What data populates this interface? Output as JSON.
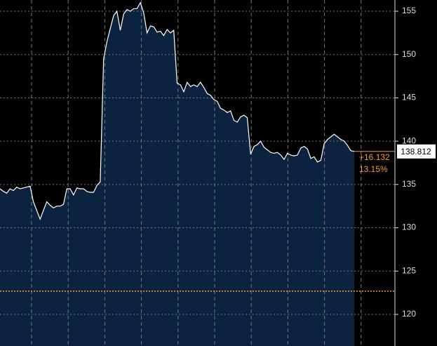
{
  "chart_data": {
    "type": "area",
    "values": [
      134.5,
      134.2,
      134.0,
      134.5,
      134.3,
      134.7,
      134.5,
      134.6,
      134.7,
      134.8,
      133.0,
      132.0,
      131.0,
      132.0,
      133.0,
      132.6,
      132.3,
      132.5,
      132.5,
      132.7,
      134.5,
      134.5,
      133.8,
      134.6,
      134.5,
      134.5,
      134.2,
      134.1,
      134.1,
      134.9,
      135.3,
      149.5,
      151.5,
      153.0,
      154.5,
      155.0,
      152.8,
      154.7,
      155.2,
      155.0,
      155.3,
      155.3,
      156.0,
      154.8,
      152.5,
      153.3,
      153.2,
      152.6,
      152.7,
      152.2,
      152.9,
      152.5,
      152.8,
      146.7,
      146.5,
      145.7,
      146.8,
      146.3,
      146.5,
      146.3,
      146.8,
      146.2,
      145.5,
      145.3,
      144.8,
      144.6,
      143.8,
      143.6,
      143.3,
      143.5,
      142.4,
      142.2,
      142.8,
      143.0,
      142.7,
      138.5,
      139.4,
      139.6,
      140.0,
      139.3,
      139.0,
      138.7,
      138.6,
      138.7,
      138.4,
      137.9,
      138.6,
      138.4,
      138.3,
      138.4,
      139.2,
      139.4,
      139.1,
      138.0,
      138.2,
      137.6,
      137.8,
      139.7,
      140.2,
      140.5,
      140.8,
      140.5,
      140.2,
      140.0,
      139.5,
      138.9,
      138.812
    ],
    "line_color": "#ffffff",
    "fill_color": "#0c2340",
    "ylim": [
      116.35,
      156.3
    ],
    "yticks": [
      120,
      125,
      130,
      135,
      140,
      145,
      150,
      155
    ],
    "grid": true,
    "last_value": 138.812,
    "reference": 122.68,
    "reference_color": "#f39c33",
    "change_label": "+16.132",
    "change_pct_label": "13.15%"
  }
}
